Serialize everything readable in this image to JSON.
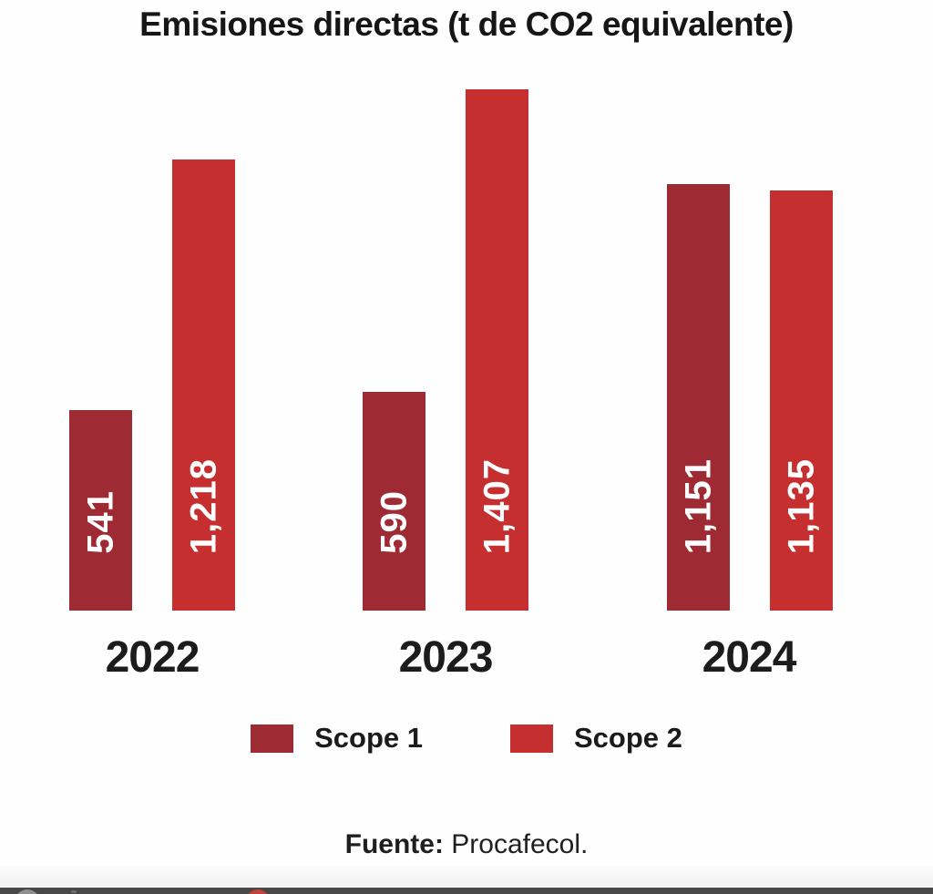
{
  "chart_data": {
    "type": "bar",
    "title": "Emisiones directas (t de CO2 equivalente)",
    "categories": [
      "2022",
      "2023",
      "2024"
    ],
    "series": [
      {
        "name": "Scope 1",
        "color": "#9E2B33",
        "values": [
          541,
          590,
          1151
        ],
        "labels": [
          "541",
          "590",
          "1,151"
        ]
      },
      {
        "name": "Scope 2",
        "color": "#C62F2F",
        "values": [
          1218,
          1407,
          1135
        ],
        "labels": [
          "1,218",
          "1,407",
          "1,135"
        ]
      }
    ],
    "xlabel": "",
    "ylabel": "",
    "ylim": [
      0,
      1407
    ],
    "grid": false,
    "axes_visible": false,
    "legend_position": "bottom",
    "value_label_rotation": -90,
    "value_label_color": "#FFFFFF"
  },
  "source": {
    "prefix": "Fuente:",
    "text": " Procafecol."
  },
  "colors": {
    "scope1": "#9E2B33",
    "scope2": "#C62F2F",
    "title_text": "#161616",
    "toolbar_strip": "#484848",
    "toolbar_gray_icon": "#8F8F8F",
    "toolbar_red_icon": "#C4423A"
  },
  "bottom_toolbar": {
    "icons": [
      "gray-circle-icon",
      "red-circle-icon"
    ]
  }
}
